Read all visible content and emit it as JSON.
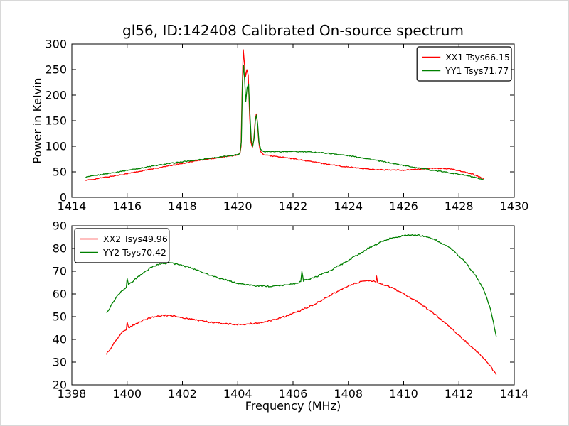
{
  "figure": {
    "title": "gl56, ID:142408 Calibrated On-source spectrum",
    "background": "#ffffff",
    "line_colors": {
      "xx": "#ff0000",
      "yy": "#008000"
    }
  },
  "chart_data": [
    {
      "type": "line",
      "name": "top-spectrum",
      "xlabel": "",
      "ylabel": "Power in Kelvin",
      "xlim": [
        1414,
        1430
      ],
      "ylim": [
        0,
        300
      ],
      "xticks": [
        1414,
        1416,
        1418,
        1420,
        1422,
        1424,
        1426,
        1428,
        1430
      ],
      "yticks": [
        0,
        50,
        100,
        150,
        200,
        250,
        300
      ],
      "grid": false,
      "legend": {
        "position": "upper-right"
      },
      "series": [
        {
          "id": "XX1",
          "label": "XX1 Tsys66.15",
          "color": "#ff0000",
          "noise": 1.0,
          "points": [
            [
              1414.5,
              33
            ],
            [
              1415,
              37.5
            ],
            [
              1415.5,
              42
            ],
            [
              1416,
              46.5
            ],
            [
              1416.5,
              51.5
            ],
            [
              1417,
              56.5
            ],
            [
              1417.5,
              61.5
            ],
            [
              1418,
              66.5
            ],
            [
              1418.5,
              71.5
            ],
            [
              1419,
              75.5
            ],
            [
              1419.4,
              78.5
            ],
            [
              1419.8,
              81.5
            ],
            [
              1420.0,
              83.5
            ],
            [
              1420.08,
              85
            ],
            [
              1420.12,
              100
            ],
            [
              1420.16,
              210
            ],
            [
              1420.2,
              289
            ],
            [
              1420.24,
              262
            ],
            [
              1420.28,
              235
            ],
            [
              1420.33,
              250
            ],
            [
              1420.38,
              240
            ],
            [
              1420.43,
              160
            ],
            [
              1420.48,
              108
            ],
            [
              1420.53,
              98
            ],
            [
              1420.58,
              112
            ],
            [
              1420.63,
              150
            ],
            [
              1420.67,
              164
            ],
            [
              1420.71,
              148
            ],
            [
              1420.76,
              108
            ],
            [
              1420.82,
              90
            ],
            [
              1420.9,
              85
            ],
            [
              1421,
              82.5
            ],
            [
              1421.3,
              80.5
            ],
            [
              1421.6,
              78.5
            ],
            [
              1422,
              75.5
            ],
            [
              1422.5,
              71.5
            ],
            [
              1423,
              67
            ],
            [
              1423.5,
              63
            ],
            [
              1424,
              59.5
            ],
            [
              1424.5,
              56.5
            ],
            [
              1425,
              54.5
            ],
            [
              1425.5,
              53.5
            ],
            [
              1426,
              53.5
            ],
            [
              1426.5,
              55
            ],
            [
              1427,
              56.5
            ],
            [
              1427.3,
              57
            ],
            [
              1427.7,
              55.5
            ],
            [
              1428,
              52.5
            ],
            [
              1428.3,
              48.5
            ],
            [
              1428.6,
              43.5
            ],
            [
              1428.9,
              36
            ]
          ]
        },
        {
          "id": "YY1",
          "label": "YY1 Tsys71.77",
          "color": "#008000",
          "noise": 1.0,
          "points": [
            [
              1414.5,
              39.5
            ],
            [
              1415,
              44
            ],
            [
              1415.5,
              48.5
            ],
            [
              1416,
              53
            ],
            [
              1416.5,
              57.5
            ],
            [
              1417,
              62
            ],
            [
              1417.5,
              66
            ],
            [
              1418,
              69.5
            ],
            [
              1418.5,
              73
            ],
            [
              1419,
              76.5
            ],
            [
              1419.4,
              79
            ],
            [
              1419.8,
              82
            ],
            [
              1420.0,
              84
            ],
            [
              1420.08,
              86
            ],
            [
              1420.13,
              110
            ],
            [
              1420.17,
              225
            ],
            [
              1420.21,
              258
            ],
            [
              1420.25,
              230
            ],
            [
              1420.29,
              188
            ],
            [
              1420.34,
              215
            ],
            [
              1420.39,
              222
            ],
            [
              1420.44,
              165
            ],
            [
              1420.49,
              112
            ],
            [
              1420.54,
              100
            ],
            [
              1420.59,
              115
            ],
            [
              1420.64,
              152
            ],
            [
              1420.68,
              161
            ],
            [
              1420.72,
              145
            ],
            [
              1420.77,
              108
            ],
            [
              1420.83,
              94
            ],
            [
              1420.9,
              91
            ],
            [
              1421,
              89.5
            ],
            [
              1421.5,
              89.5
            ],
            [
              1422,
              89.5
            ],
            [
              1422.5,
              89
            ],
            [
              1423,
              87.5
            ],
            [
              1423.5,
              85
            ],
            [
              1424,
              81.5
            ],
            [
              1424.5,
              77.5
            ],
            [
              1425,
              72.5
            ],
            [
              1425.5,
              67.5
            ],
            [
              1426,
              62.5
            ],
            [
              1426.5,
              58
            ],
            [
              1427,
              53.5
            ],
            [
              1427.5,
              49.5
            ],
            [
              1428,
              45.5
            ],
            [
              1428.3,
              42.5
            ],
            [
              1428.6,
              38.5
            ],
            [
              1428.9,
              33.5
            ]
          ]
        }
      ]
    },
    {
      "type": "line",
      "name": "bottom-spectrum",
      "xlabel": "Frequency (MHz)",
      "ylabel": "",
      "xlim": [
        1398,
        1414
      ],
      "ylim": [
        20,
        90
      ],
      "xticks": [
        1398,
        1400,
        1402,
        1404,
        1406,
        1408,
        1410,
        1412,
        1414
      ],
      "yticks": [
        20,
        30,
        40,
        50,
        60,
        70,
        80,
        90
      ],
      "grid": false,
      "legend": {
        "position": "upper-left"
      },
      "series": [
        {
          "id": "XX2",
          "label": "XX2 Tsys49.96",
          "color": "#ff0000",
          "noise": 0.35,
          "points": [
            [
              1399.25,
              33.5
            ],
            [
              1399.45,
              37
            ],
            [
              1399.65,
              40.5
            ],
            [
              1399.85,
              43.2
            ],
            [
              1399.97,
              44.3
            ],
            [
              1400.0,
              47.8
            ],
            [
              1400.05,
              45
            ],
            [
              1400.25,
              46.4
            ],
            [
              1400.5,
              48
            ],
            [
              1400.75,
              49.2
            ],
            [
              1401.0,
              50.1
            ],
            [
              1401.3,
              50.5
            ],
            [
              1401.6,
              50.4
            ],
            [
              1401.9,
              49.9
            ],
            [
              1402.3,
              49
            ],
            [
              1402.7,
              48.1
            ],
            [
              1403.1,
              47.4
            ],
            [
              1403.5,
              46.9
            ],
            [
              1403.9,
              46.6
            ],
            [
              1404.3,
              46.7
            ],
            [
              1404.7,
              47.2
            ],
            [
              1405.1,
              48.1
            ],
            [
              1405.5,
              49.3
            ],
            [
              1405.9,
              50.9
            ],
            [
              1406.3,
              52.8
            ],
            [
              1406.7,
              55.1
            ],
            [
              1407.1,
              57.7
            ],
            [
              1407.5,
              60.4
            ],
            [
              1407.9,
              62.9
            ],
            [
              1408.2,
              64.4
            ],
            [
              1408.5,
              65.6
            ],
            [
              1408.8,
              66
            ],
            [
              1409.0,
              65.2
            ],
            [
              1409.02,
              67.8
            ],
            [
              1409.06,
              64.9
            ],
            [
              1409.3,
              64
            ],
            [
              1409.6,
              62.6
            ],
            [
              1410,
              60.1
            ],
            [
              1410.4,
              57.3
            ],
            [
              1410.8,
              54
            ],
            [
              1411.2,
              50.3
            ],
            [
              1411.6,
              46.2
            ],
            [
              1412,
              41.8
            ],
            [
              1412.4,
              37.3
            ],
            [
              1412.8,
              32.8
            ],
            [
              1413.1,
              28.8
            ],
            [
              1413.35,
              24.3
            ]
          ]
        },
        {
          "id": "YY2",
          "label": "YY2 Tsys70.42",
          "color": "#008000",
          "noise": 0.35,
          "points": [
            [
              1399.25,
              51.5
            ],
            [
              1399.45,
              55.5
            ],
            [
              1399.65,
              59
            ],
            [
              1399.85,
              61.8
            ],
            [
              1399.97,
              63
            ],
            [
              1400.0,
              66.8
            ],
            [
              1400.05,
              63.8
            ],
            [
              1400.3,
              66.5
            ],
            [
              1400.6,
              69.5
            ],
            [
              1400.9,
              71.8
            ],
            [
              1401.2,
              73.2
            ],
            [
              1401.5,
              73.6
            ],
            [
              1401.8,
              73.2
            ],
            [
              1402.2,
              71.8
            ],
            [
              1402.6,
              70
            ],
            [
              1403,
              68.3
            ],
            [
              1403.4,
              66.7
            ],
            [
              1403.8,
              65.3
            ],
            [
              1404.2,
              64.3
            ],
            [
              1404.6,
              63.7
            ],
            [
              1405,
              63.4
            ],
            [
              1405.4,
              63.5
            ],
            [
              1405.8,
              64
            ],
            [
              1406.1,
              64.7
            ],
            [
              1406.28,
              65.3
            ],
            [
              1406.32,
              69.7
            ],
            [
              1406.38,
              65.8
            ],
            [
              1406.7,
              67
            ],
            [
              1407.1,
              68.9
            ],
            [
              1407.5,
              71.3
            ],
            [
              1407.9,
              74
            ],
            [
              1408.3,
              77
            ],
            [
              1408.7,
              79.9
            ],
            [
              1409.1,
              82.4
            ],
            [
              1409.5,
              84.3
            ],
            [
              1409.9,
              85.5
            ],
            [
              1410.2,
              86
            ],
            [
              1410.5,
              85.9
            ],
            [
              1410.8,
              85.3
            ],
            [
              1411.1,
              84.1
            ],
            [
              1411.4,
              82.3
            ],
            [
              1411.7,
              79.9
            ],
            [
              1412,
              76.8
            ],
            [
              1412.3,
              72.9
            ],
            [
              1412.6,
              68
            ],
            [
              1412.9,
              61.8
            ],
            [
              1413.1,
              55
            ],
            [
              1413.25,
              47.5
            ],
            [
              1413.35,
              41
            ]
          ]
        }
      ]
    }
  ]
}
